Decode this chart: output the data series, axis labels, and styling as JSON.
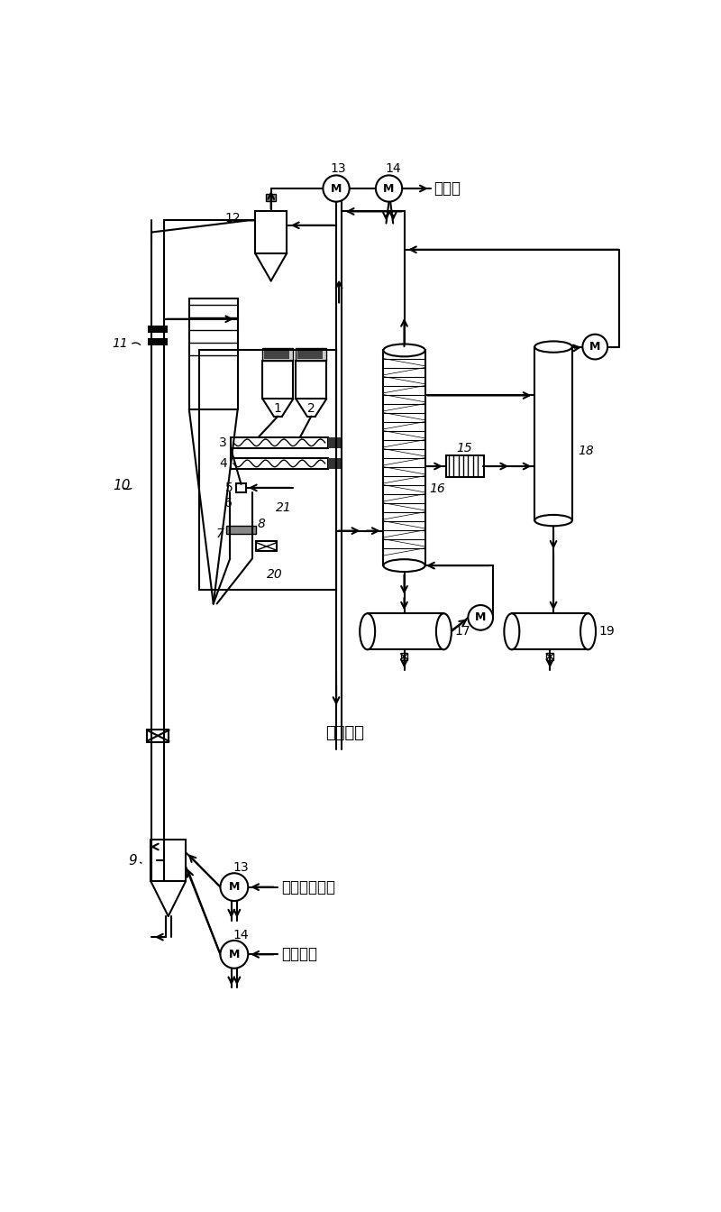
{
  "bg_color": "#ffffff",
  "line_color": "#000000",
  "fig_width": 8.0,
  "fig_height": 13.44,
  "labels": {
    "waste_gas": "废烟气",
    "remaining_gas": "剩余燃气",
    "recycle_gas": "循环回用燃气",
    "compressed_air": "压缩空气"
  }
}
